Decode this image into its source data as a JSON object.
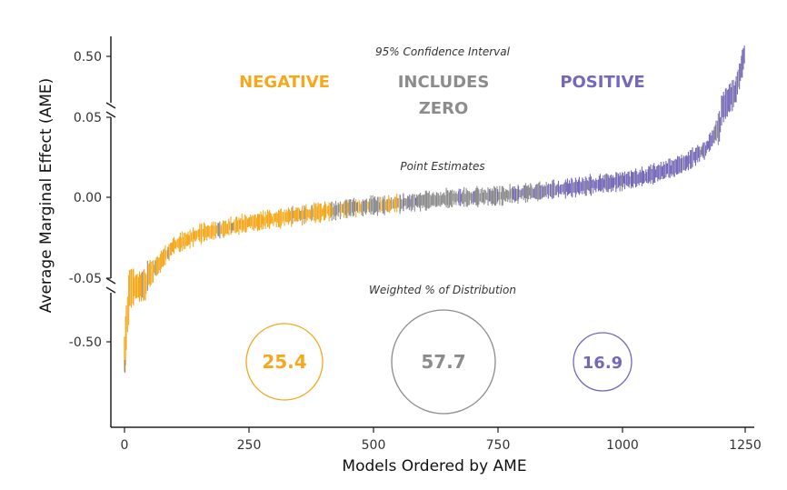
{
  "chart_data": {
    "type": "scatter",
    "description_type": "ordered interval plot with broken y-axis",
    "xlabel": "Models Ordered by AME",
    "ylabel": "Average Marginal Effect (AME)",
    "x_ticks": [
      0,
      250,
      500,
      750,
      1000,
      1250
    ],
    "xlim": [
      0,
      1260
    ],
    "y_tick_labels": {
      "upper": [
        "0.50"
      ],
      "middle": [
        "0.05",
        "0.00",
        "-0.05"
      ],
      "lower": [
        "-0.50"
      ]
    },
    "ylim_middle": [
      -0.05,
      0.05
    ],
    "n_models": 1250,
    "annotations": {
      "ci_title": "95% Confidence Interval",
      "point_title": "Point Estimates",
      "dist_title": "Weighted % of Distribution"
    },
    "categories": [
      {
        "label": "NEGATIVE",
        "label_lines": [
          "NEGATIVE"
        ],
        "color": "#F5A81C",
        "share": "25.4",
        "share_value": 25.4
      },
      {
        "label": "INCLUDES ZERO",
        "label_lines": [
          "INCLUDES",
          "ZERO"
        ],
        "color": "#8C8C8C",
        "share": "57.7",
        "share_value": 57.7
      },
      {
        "label": "POSITIVE",
        "label_lines": [
          "POSITIVE"
        ],
        "color": "#7568B8",
        "share": "16.9",
        "share_value": 16.9
      }
    ],
    "curve_key_points": [
      {
        "x": 0,
        "y": -0.6
      },
      {
        "x": 10,
        "y": -0.07
      },
      {
        "x": 30,
        "y": -0.055
      },
      {
        "x": 60,
        "y": -0.045
      },
      {
        "x": 100,
        "y": -0.03
      },
      {
        "x": 150,
        "y": -0.023
      },
      {
        "x": 250,
        "y": -0.016
      },
      {
        "x": 350,
        "y": -0.011
      },
      {
        "x": 450,
        "y": -0.007
      },
      {
        "x": 550,
        "y": -0.004
      },
      {
        "x": 650,
        "y": -0.001
      },
      {
        "x": 750,
        "y": 0.001
      },
      {
        "x": 850,
        "y": 0.004
      },
      {
        "x": 950,
        "y": 0.008
      },
      {
        "x": 1050,
        "y": 0.013
      },
      {
        "x": 1120,
        "y": 0.02
      },
      {
        "x": 1170,
        "y": 0.03
      },
      {
        "x": 1200,
        "y": 0.045
      },
      {
        "x": 1230,
        "y": 0.2
      },
      {
        "x": 1250,
        "y": 0.55
      }
    ]
  }
}
